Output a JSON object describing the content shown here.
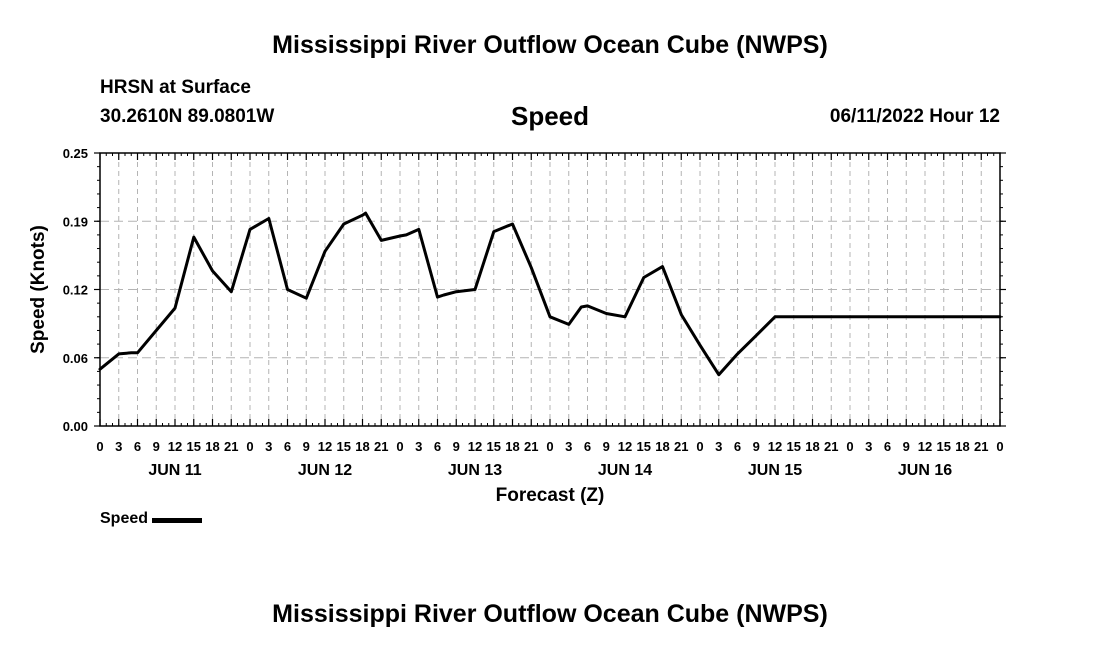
{
  "header": {
    "title": "Mississippi River Outflow Ocean Cube (NWPS)",
    "station": "HRSN at Surface",
    "coords": "30.2610N  89.0801W",
    "datetime": "06/11/2022 Hour 12",
    "footer_title": "Mississippi River Outflow Ocean Cube (NWPS)"
  },
  "colors": {
    "line": "#000000",
    "grid": "#b4b4b4"
  },
  "chart_data": {
    "type": "line",
    "title": "Speed",
    "xlabel": "Forecast (Z)",
    "ylabel": "Speed (Knots)",
    "ylim": [
      0,
      0.25
    ],
    "xlim_hours": [
      0,
      144
    ],
    "grid": true,
    "y_ticks": [
      "0.00",
      "0.06",
      "0.12",
      "0.19",
      "0.25"
    ],
    "y_tick_values": [
      0,
      0.0625,
      0.125,
      0.1875,
      0.25
    ],
    "x_tick_labels": [
      "0",
      "3",
      "6",
      "9",
      "12",
      "15",
      "18",
      "21",
      "0",
      "3",
      "6",
      "9",
      "12",
      "15",
      "18",
      "21",
      "0",
      "3",
      "6",
      "9",
      "12",
      "15",
      "18",
      "21",
      "0",
      "3",
      "6",
      "9",
      "12",
      "15",
      "18",
      "21",
      "0",
      "3",
      "6",
      "9",
      "12",
      "15",
      "18",
      "21",
      "0",
      "3",
      "6",
      "9",
      "12",
      "15",
      "18",
      "21",
      "0"
    ],
    "day_labels": [
      "JUN 11",
      "JUN 12",
      "JUN 13",
      "JUN 14",
      "JUN 15",
      "JUN 16"
    ],
    "legend": "Speed",
    "series": [
      {
        "name": "Speed",
        "x_hours": [
          0,
          3,
          5,
          6,
          12,
          15,
          18,
          21,
          24,
          27,
          30,
          33,
          36,
          39,
          42,
          42.5,
          45,
          48,
          49,
          51,
          54,
          55,
          57,
          60,
          63,
          66,
          69,
          72,
          75,
          77,
          78,
          81,
          84,
          87,
          90,
          93,
          96,
          99,
          102,
          105,
          108,
          111,
          114,
          117,
          120,
          123,
          126,
          129,
          132,
          135,
          138,
          141,
          144
        ],
        "values": [
          0.052,
          0.066,
          0.067,
          0.067,
          0.108,
          0.173,
          0.142,
          0.123,
          0.18,
          0.19,
          0.125,
          0.117,
          0.16,
          0.185,
          0.193,
          0.195,
          0.17,
          0.174,
          0.175,
          0.18,
          0.118,
          0.12,
          0.123,
          0.125,
          0.178,
          0.185,
          0.145,
          0.1,
          0.093,
          0.109,
          0.11,
          0.103,
          0.1,
          0.136,
          0.146,
          0.102,
          0.074,
          0.047,
          0.066,
          0.083,
          0.1,
          0.1,
          0.1,
          0.1,
          0.1,
          0.1,
          0.1,
          0.1,
          0.1,
          0.1,
          0.1,
          0.1,
          0.1
        ]
      }
    ]
  }
}
